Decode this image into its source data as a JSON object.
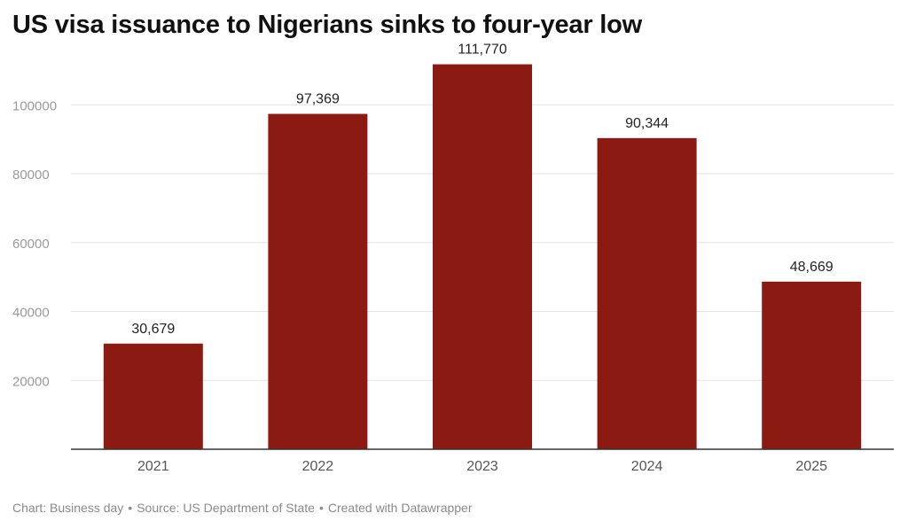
{
  "title": "US visa issuance to Nigerians sinks to four-year low",
  "footer": {
    "chart_credit": "Chart: Business day",
    "source": "Source: US Department of State",
    "tool": "Created with Datawrapper",
    "separator": "•"
  },
  "colors": {
    "bar": "#8b1a12",
    "grid": "#e3e3e3",
    "axis": "#333333",
    "tick_label": "#9a9a9a",
    "category_label": "#555555",
    "value_label": "#222222"
  },
  "chart_data": {
    "type": "bar",
    "title": "US visa issuance to Nigerians sinks to four-year low",
    "categories": [
      "2021",
      "2022",
      "2023",
      "2024",
      "2025"
    ],
    "values": [
      30679,
      97369,
      111770,
      90344,
      48669
    ],
    "value_labels": [
      "30,679",
      "97,369",
      "111,770",
      "90,344",
      "48,669"
    ],
    "yticks": [
      20000,
      40000,
      60000,
      80000,
      100000
    ],
    "ylim": [
      0,
      115000
    ],
    "xlabel": "",
    "ylabel": "",
    "grid": true,
    "legend": "none"
  }
}
